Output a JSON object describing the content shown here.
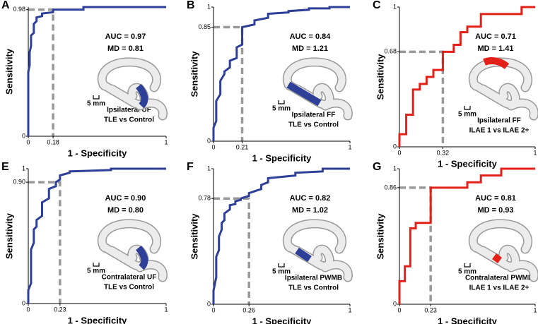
{
  "chart_data": [
    {
      "type": "line",
      "panel": "A",
      "xlabel": "1 - Specificity",
      "ylabel": "Sensitivity",
      "annotations": [
        "AUC = 0.97",
        "MD = 0.81"
      ],
      "tract_label": [
        "Ipsilateral UF",
        "TLE vs Control"
      ],
      "scale": "5 mm",
      "xlim": [
        0,
        1
      ],
      "ylim": [
        0,
        1
      ],
      "xticks": [
        0,
        0.18,
        1
      ],
      "yticks": [
        0,
        0.98
      ],
      "series": [
        {
          "color": "#2e3f98",
          "x": [
            0,
            0,
            0.01,
            0.01,
            0.02,
            0.02,
            0.04,
            0.04,
            0.06,
            0.06,
            0.1,
            0.1,
            0.18,
            0.18,
            0.4,
            0.4,
            1
          ],
          "values": [
            0,
            0.5,
            0.55,
            0.65,
            0.7,
            0.78,
            0.8,
            0.87,
            0.89,
            0.92,
            0.93,
            0.95,
            0.96,
            0.98,
            0.98,
            1,
            1
          ]
        }
      ]
    },
    {
      "type": "line",
      "panel": "B",
      "xlabel": "1 - Specificity",
      "ylabel": "Sensitivity",
      "annotations": [
        "AUC = 0.84",
        "MD = 1.21"
      ],
      "tract_label": [
        "Ipsilateral FF",
        "TLE vs Control"
      ],
      "scale": "5 mm",
      "xlim": [
        0,
        1
      ],
      "ylim": [
        0,
        1
      ],
      "xticks": [
        0,
        0.21,
        1
      ],
      "yticks": [
        0,
        0.85,
        1
      ],
      "series": [
        {
          "color": "#2e3f98",
          "x": [
            0,
            0,
            0.02,
            0.02,
            0.05,
            0.05,
            0.08,
            0.08,
            0.12,
            0.12,
            0.17,
            0.17,
            0.21,
            0.21,
            0.3,
            0.3,
            0.4,
            0.4,
            0.55,
            0.55,
            0.7,
            0.7,
            0.85,
            0.85,
            1
          ],
          "values": [
            0,
            0.1,
            0.15,
            0.3,
            0.35,
            0.45,
            0.5,
            0.52,
            0.55,
            0.6,
            0.62,
            0.7,
            0.72,
            0.85,
            0.87,
            0.9,
            0.92,
            0.95,
            0.96,
            0.97,
            0.98,
            0.99,
            0.99,
            1,
            1
          ]
        }
      ]
    },
    {
      "type": "line",
      "panel": "C",
      "xlabel": "1 - Specificity",
      "ylabel": "Sensitivity",
      "annotations": [
        "AUC = 0.71",
        "MD = 1.41"
      ],
      "tract_label": [
        "Ipsilateral FF",
        "ILAE 1 vs ILAE 2+"
      ],
      "scale": "5 mm",
      "xlim": [
        0,
        1
      ],
      "ylim": [
        0,
        1
      ],
      "xticks": [
        0,
        0.32,
        1
      ],
      "yticks": [
        0,
        0.68,
        1
      ],
      "series": [
        {
          "color": "#e32119",
          "x": [
            0,
            0,
            0.05,
            0.05,
            0.1,
            0.1,
            0.15,
            0.15,
            0.2,
            0.2,
            0.25,
            0.25,
            0.32,
            0.32,
            0.4,
            0.4,
            0.45,
            0.45,
            0.5,
            0.5,
            0.6,
            0.6,
            0.9,
            0.9,
            1
          ],
          "values": [
            0,
            0.09,
            0.09,
            0.23,
            0.23,
            0.41,
            0.41,
            0.45,
            0.45,
            0.5,
            0.5,
            0.55,
            0.55,
            0.68,
            0.68,
            0.73,
            0.73,
            0.82,
            0.82,
            0.86,
            0.86,
            0.95,
            0.95,
            1,
            1
          ]
        }
      ]
    },
    {
      "type": "line",
      "panel": "E",
      "xlabel": "1 - Specificity",
      "ylabel": "Sensitivity",
      "annotations": [
        "AUC = 0.90",
        "MD = 0.80"
      ],
      "tract_label": [
        "Contralateral UF",
        "TLE vs Control"
      ],
      "scale": "5 mm",
      "xlim": [
        0,
        1
      ],
      "ylim": [
        0,
        1
      ],
      "xticks": [
        0,
        0.23,
        1
      ],
      "yticks": [
        0,
        {
          "value": 0.9,
          "label": "0.90"
        },
        1
      ],
      "series": [
        {
          "color": "#2e3f98",
          "x": [
            0,
            0,
            0.02,
            0.02,
            0.04,
            0.04,
            0.06,
            0.06,
            0.1,
            0.1,
            0.15,
            0.15,
            0.2,
            0.2,
            0.23,
            0.23,
            0.3,
            0.3,
            0.6,
            0.6,
            1
          ],
          "values": [
            0,
            0.1,
            0.15,
            0.4,
            0.45,
            0.55,
            0.57,
            0.62,
            0.65,
            0.75,
            0.78,
            0.85,
            0.87,
            0.9,
            0.92,
            0.95,
            0.97,
            0.98,
            0.99,
            1,
            1
          ]
        }
      ]
    },
    {
      "type": "line",
      "panel": "F",
      "xlabel": "1 - Specificity",
      "ylabel": "Sensitivity",
      "annotations": [
        "AUC = 0.82",
        "MD = 1.02"
      ],
      "tract_label": [
        "Ipsilateral PWMB",
        "TLE vs Control"
      ],
      "scale": "5 mm",
      "xlim": [
        0,
        1
      ],
      "ylim": [
        0,
        1
      ],
      "xticks": [
        0,
        0.26,
        1
      ],
      "yticks": [
        0,
        0.78,
        1
      ],
      "series": [
        {
          "color": "#2e3f98",
          "x": [
            0,
            0,
            0.02,
            0.02,
            0.04,
            0.04,
            0.06,
            0.06,
            0.08,
            0.08,
            0.12,
            0.12,
            0.16,
            0.16,
            0.2,
            0.2,
            0.26,
            0.26,
            0.35,
            0.35,
            0.4,
            0.4,
            0.6,
            0.6,
            0.8,
            0.8,
            1
          ],
          "values": [
            0,
            0.1,
            0.2,
            0.35,
            0.4,
            0.5,
            0.55,
            0.6,
            0.62,
            0.67,
            0.7,
            0.73,
            0.74,
            0.76,
            0.77,
            0.78,
            0.8,
            0.82,
            0.85,
            0.88,
            0.9,
            0.93,
            0.95,
            0.97,
            0.98,
            1,
            1
          ]
        }
      ]
    },
    {
      "type": "line",
      "panel": "G",
      "xlabel": "1 - Specificity",
      "ylabel": "Sensitivity",
      "annotations": [
        "AUC = 0.81",
        "MD = 0.93"
      ],
      "tract_label": [
        "Contralateral PWMB",
        "ILAE 1 vs ILAE 2+"
      ],
      "scale": "5 mm",
      "xlim": [
        0,
        1
      ],
      "ylim": [
        0,
        1
      ],
      "xticks": [
        0,
        0.23,
        1
      ],
      "yticks": [
        0,
        0.86,
        1
      ],
      "series": [
        {
          "color": "#e32119",
          "x": [
            0,
            0,
            0.04,
            0.04,
            0.08,
            0.08,
            0.12,
            0.12,
            0.23,
            0.23,
            0.5,
            0.5,
            0.6,
            0.6,
            0.75,
            0.75,
            1
          ],
          "values": [
            0,
            0.17,
            0.17,
            0.28,
            0.28,
            0.56,
            0.56,
            0.6,
            0.6,
            0.86,
            0.86,
            0.9,
            0.9,
            0.95,
            0.95,
            1,
            1
          ]
        }
      ]
    }
  ]
}
